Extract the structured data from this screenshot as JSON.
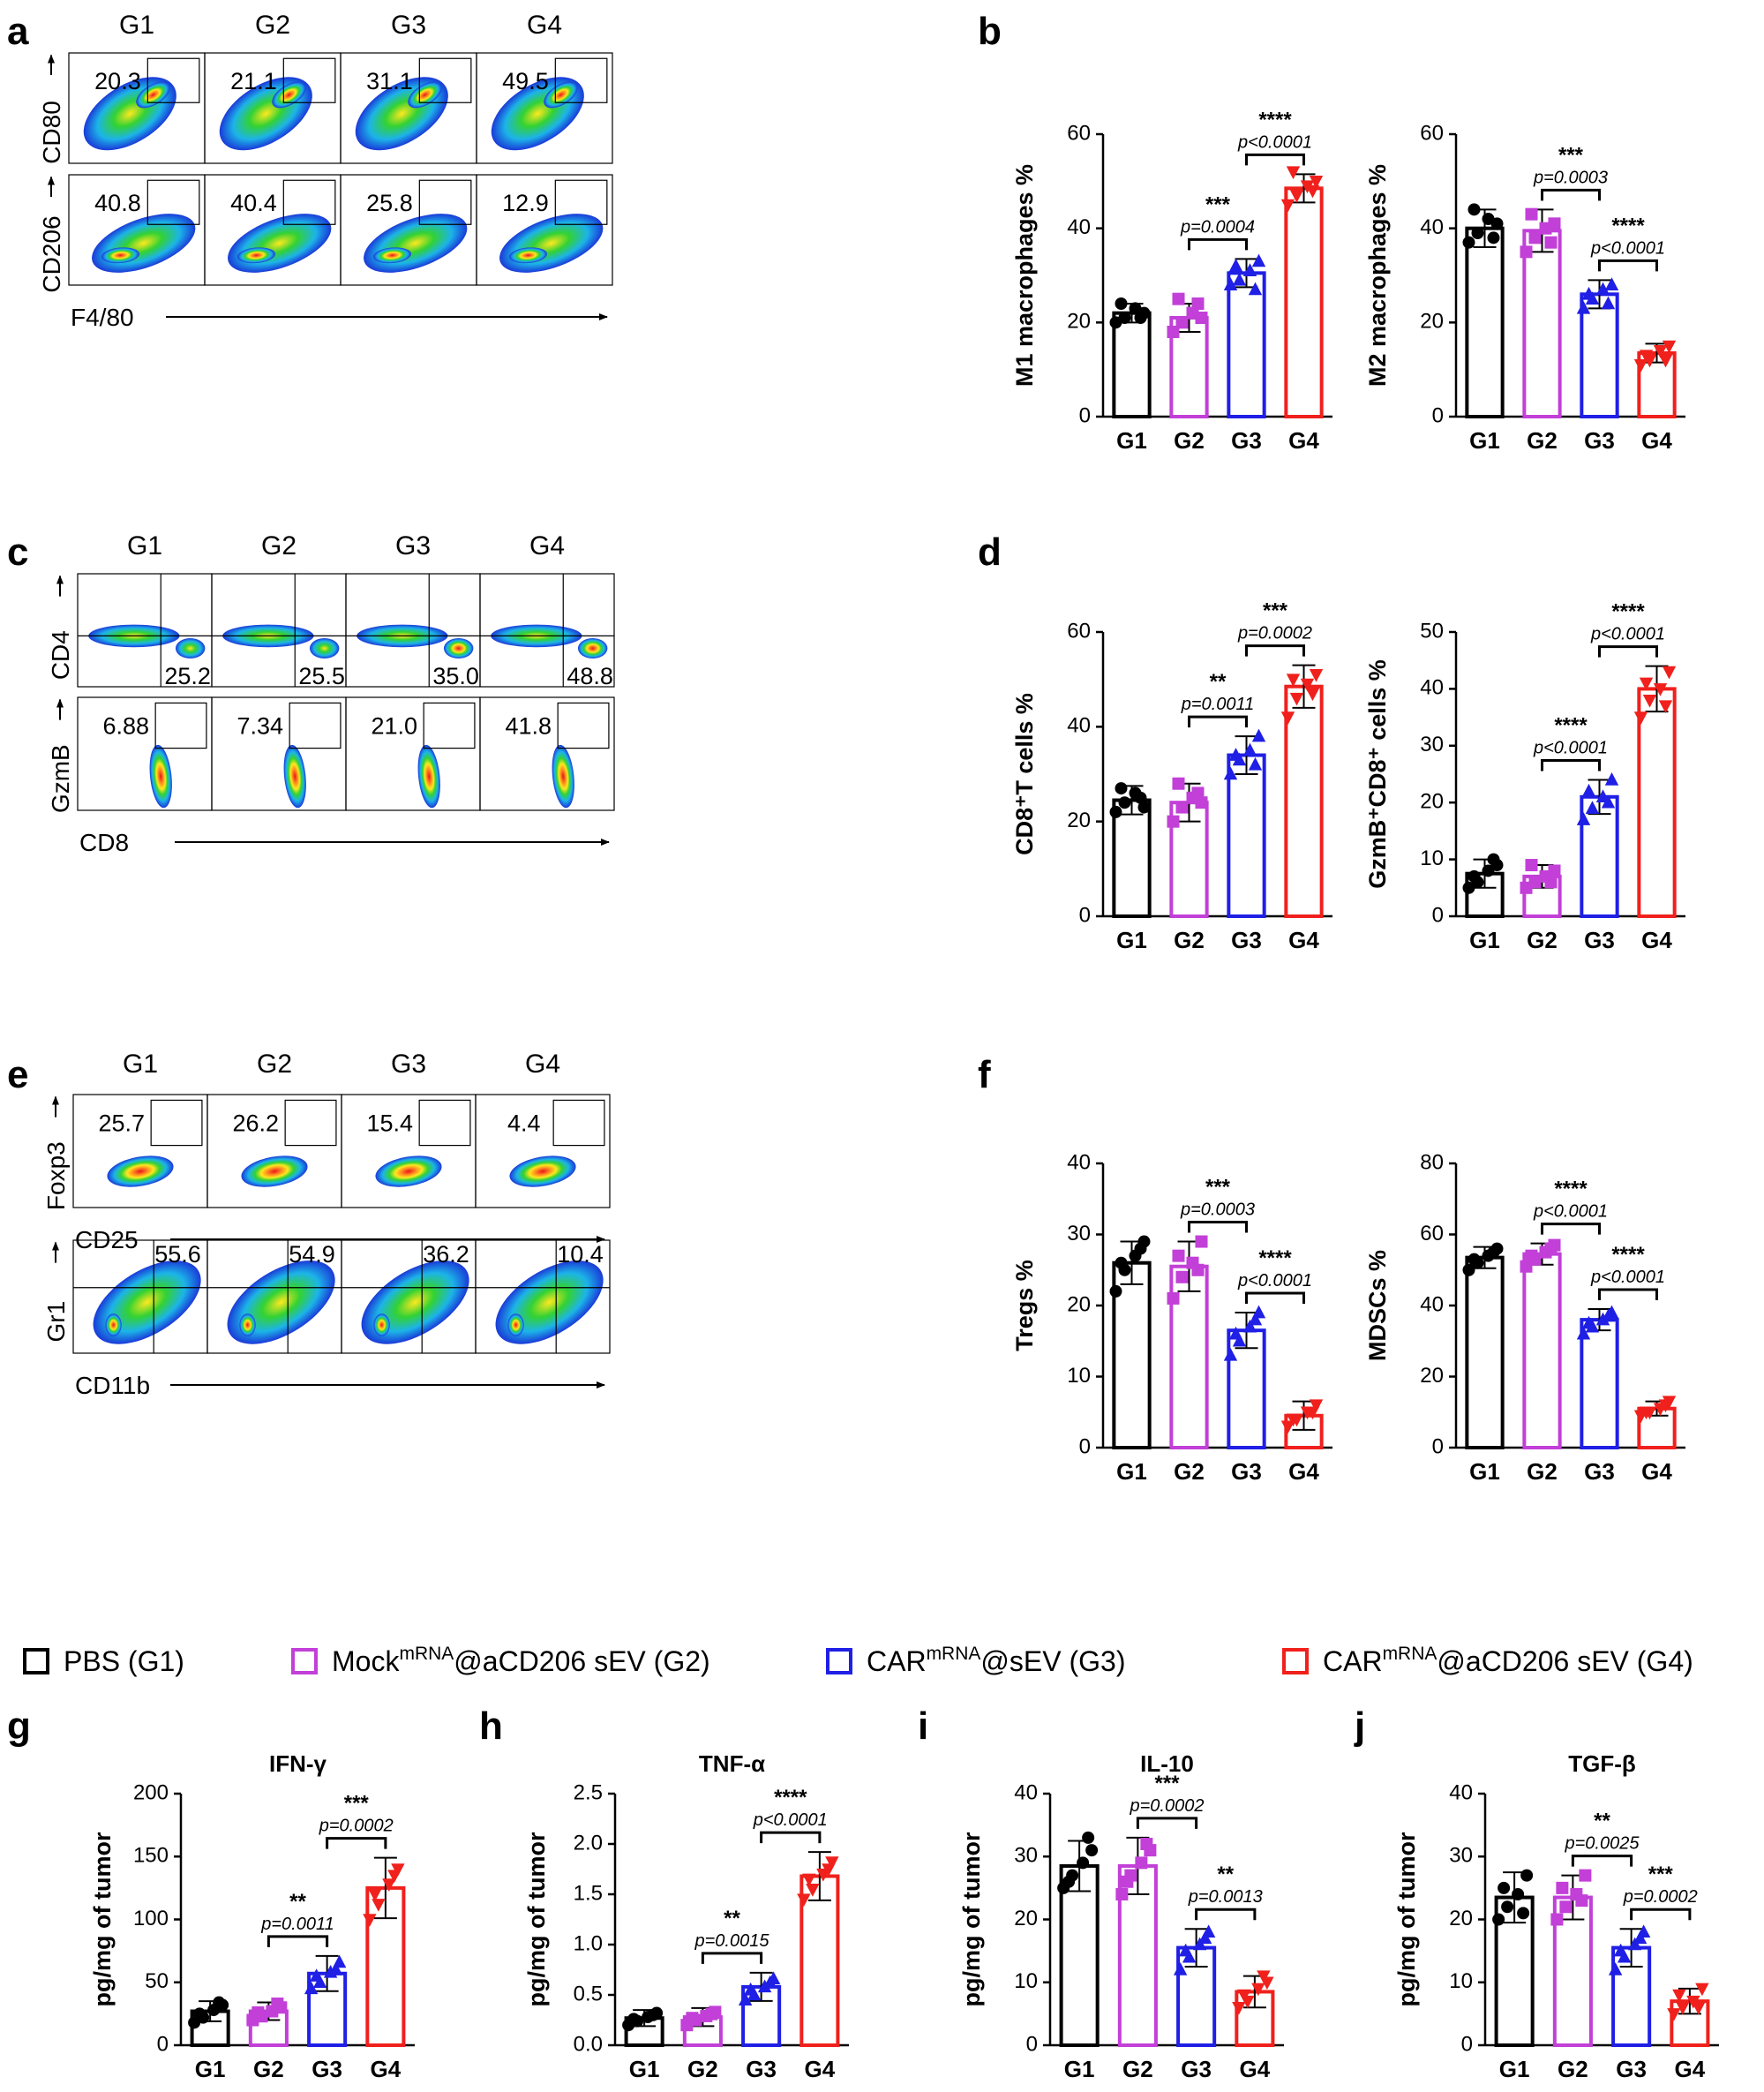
{
  "colors": {
    "G1": "#000000",
    "G2": "#c23fd8",
    "G3": "#1f1fe6",
    "G4": "#f0201c"
  },
  "panel_labels": [
    "a",
    "b",
    "c",
    "d",
    "e",
    "f",
    "g",
    "h",
    "i",
    "j"
  ],
  "flow_groups": [
    "G1",
    "G2",
    "G3",
    "G4"
  ],
  "flow_rows": [
    {
      "id": "a-cd80",
      "ylabel": "CD80",
      "xlabel": "",
      "values": [
        "20.3",
        "21.1",
        "31.1",
        "49.5"
      ],
      "gate": "rect-top",
      "blobs": "diag"
    },
    {
      "id": "a-cd206",
      "ylabel": "CD206",
      "xlabel": "F4/80",
      "values": [
        "40.8",
        "40.4",
        "25.8",
        "12.9"
      ],
      "gate": "rect-top",
      "blobs": "diag-low"
    },
    {
      "id": "c-cd4",
      "ylabel": "CD4",
      "xlabel": "",
      "values": [
        "25.2",
        "25.5",
        "35.0",
        "48.8"
      ],
      "gate": "quad",
      "blobs": "cd4"
    },
    {
      "id": "c-gzmb",
      "ylabel": "GzmB",
      "xlabel": "CD8",
      "values": [
        "6.88",
        "7.34",
        "21.0",
        "41.8"
      ],
      "gate": "rect-top",
      "blobs": "vertical"
    },
    {
      "id": "e-foxp3",
      "ylabel": "Foxp3",
      "xlabel": "CD25",
      "values": [
        "25.7",
        "26.2",
        "15.4",
        "4.4"
      ],
      "gate": "rect-top",
      "blobs": "small"
    },
    {
      "id": "e-gr1",
      "ylabel": "Gr1",
      "xlabel": "CD11b",
      "values": [
        "55.6",
        "54.9",
        "36.2",
        "10.4"
      ],
      "gate": "quad-top",
      "blobs": "diag-wide"
    }
  ],
  "legend": [
    {
      "group": "G1",
      "text": "PBS (G1)"
    },
    {
      "group": "G2",
      "text": "Mock",
      "sup": "mRNA",
      "rest": "@aCD206 sEV (G2)"
    },
    {
      "group": "G3",
      "text": "CAR",
      "sup": "mRNA",
      "rest": "@sEV (G3)"
    },
    {
      "group": "G4",
      "text": "CAR",
      "sup": "mRNA",
      "rest": "@aCD206 sEV (G4)"
    }
  ],
  "chart_data": [
    {
      "id": "b1",
      "type": "bar",
      "title": "",
      "ylabel": "M1 macrophages %",
      "categories": [
        "G1",
        "G2",
        "G3",
        "G4"
      ],
      "values": [
        22,
        21,
        30.5,
        48.5
      ],
      "errors": [
        2,
        3,
        3,
        3
      ],
      "ylim": [
        0,
        60
      ],
      "yticks": [
        0,
        20,
        40,
        60
      ],
      "points": [
        [
          20,
          21,
          23,
          22,
          24,
          21
        ],
        [
          18,
          20,
          22,
          21,
          25,
          24
        ],
        [
          28,
          29,
          31,
          33,
          32,
          27
        ],
        [
          45,
          47,
          49,
          50,
          52,
          48
        ]
      ],
      "annotations": [
        {
          "from": 1,
          "to": 2,
          "stars": "***",
          "p": "p=0.0004"
        },
        {
          "from": 2,
          "to": 3,
          "stars": "****",
          "p": "p<0.0001"
        }
      ]
    },
    {
      "id": "b2",
      "type": "bar",
      "title": "",
      "ylabel": "M2 macrophages %",
      "categories": [
        "G1",
        "G2",
        "G3",
        "G4"
      ],
      "values": [
        40,
        39.5,
        26,
        13.5
      ],
      "errors": [
        4,
        4.5,
        3,
        2
      ],
      "ylim": [
        0,
        60
      ],
      "yticks": [
        0,
        20,
        40,
        60
      ],
      "points": [
        [
          37,
          39,
          42,
          41,
          44,
          38
        ],
        [
          35,
          38,
          40,
          41,
          43,
          37
        ],
        [
          23,
          25,
          27,
          28,
          26,
          24
        ],
        [
          11,
          12,
          14,
          15,
          13,
          12
        ]
      ],
      "annotations": [
        {
          "from": 1,
          "to": 2,
          "stars": "***",
          "p": "p=0.0003"
        },
        {
          "from": 2,
          "to": 3,
          "stars": "****",
          "p": "p<0.0001"
        }
      ]
    },
    {
      "id": "d1",
      "type": "bar",
      "title": "",
      "ylabel": "CD8⁺T cells %",
      "categories": [
        "G1",
        "G2",
        "G3",
        "G4"
      ],
      "values": [
        24.5,
        24,
        34,
        48.5
      ],
      "errors": [
        3,
        4,
        4,
        4.5
      ],
      "ylim": [
        0,
        60
      ],
      "yticks": [
        0,
        20,
        40,
        60
      ],
      "points": [
        [
          22,
          24,
          26,
          23,
          27,
          25
        ],
        [
          20,
          23,
          25,
          24,
          28,
          26
        ],
        [
          30,
          33,
          35,
          38,
          34,
          32
        ],
        [
          42,
          46,
          49,
          51,
          50,
          47
        ]
      ],
      "annotations": [
        {
          "from": 1,
          "to": 2,
          "stars": "**",
          "p": "p=0.0011"
        },
        {
          "from": 2,
          "to": 3,
          "stars": "***",
          "p": "p=0.0002"
        }
      ]
    },
    {
      "id": "d2",
      "type": "bar",
      "title": "",
      "ylabel": "GzmB⁺CD8⁺ cells %",
      "categories": [
        "G1",
        "G2",
        "G3",
        "G4"
      ],
      "values": [
        7.5,
        7,
        21,
        40
      ],
      "errors": [
        2.5,
        2,
        3,
        4
      ],
      "ylim": [
        0,
        50
      ],
      "yticks": [
        0,
        10,
        20,
        30,
        40,
        50
      ],
      "points": [
        [
          5,
          6,
          8,
          9,
          7,
          10
        ],
        [
          5,
          6,
          7,
          8,
          9,
          6
        ],
        [
          17,
          19,
          21,
          24,
          22,
          20
        ],
        [
          35,
          38,
          40,
          43,
          41,
          37
        ]
      ],
      "annotations": [
        {
          "from": 1,
          "to": 2,
          "stars": "****",
          "p": "p<0.0001"
        },
        {
          "from": 2,
          "to": 3,
          "stars": "****",
          "p": "p<0.0001"
        }
      ]
    },
    {
      "id": "f1",
      "type": "bar",
      "title": "",
      "ylabel": "Tregs %",
      "categories": [
        "G1",
        "G2",
        "G3",
        "G4"
      ],
      "values": [
        26,
        25.5,
        16.5,
        4.5
      ],
      "errors": [
        3,
        3.5,
        2.5,
        2
      ],
      "ylim": [
        0,
        40
      ],
      "yticks": [
        0,
        10,
        20,
        30,
        40
      ],
      "points": [
        [
          22,
          25,
          27,
          29,
          26,
          28
        ],
        [
          21,
          24,
          26,
          29,
          27,
          25
        ],
        [
          13,
          15,
          17,
          19,
          16,
          18
        ],
        [
          3,
          4,
          5,
          6,
          4,
          5
        ]
      ],
      "annotations": [
        {
          "from": 1,
          "to": 2,
          "stars": "***",
          "p": "p=0.0003"
        },
        {
          "from": 2,
          "to": 3,
          "stars": "****",
          "p": "p<0.0001"
        }
      ]
    },
    {
      "id": "f2",
      "type": "bar",
      "title": "",
      "ylabel": "MDSCs %",
      "categories": [
        "G1",
        "G2",
        "G3",
        "G4"
      ],
      "values": [
        53.5,
        54.5,
        36,
        11
      ],
      "errors": [
        3,
        3,
        3,
        2
      ],
      "ylim": [
        0,
        80
      ],
      "yticks": [
        0,
        20,
        40,
        60,
        80
      ],
      "points": [
        [
          50,
          52,
          54,
          56,
          53,
          55
        ],
        [
          51,
          53,
          55,
          57,
          54,
          56
        ],
        [
          32,
          34,
          36,
          38,
          35,
          37
        ],
        [
          9,
          10,
          11,
          13,
          10,
          12
        ]
      ],
      "annotations": [
        {
          "from": 1,
          "to": 2,
          "stars": "****",
          "p": "p<0.0001"
        },
        {
          "from": 2,
          "to": 3,
          "stars": "****",
          "p": "p<0.0001"
        }
      ]
    },
    {
      "id": "g",
      "type": "bar",
      "title": "IFN-γ",
      "ylabel": "pg/mg of tumor",
      "categories": [
        "G1",
        "G2",
        "G3",
        "G4"
      ],
      "values": [
        27,
        27,
        57,
        125
      ],
      "errors": [
        8,
        7,
        14,
        24
      ],
      "ylim": [
        0,
        200
      ],
      "yticks": [
        0,
        50,
        100,
        150,
        200
      ],
      "points": [
        [
          18,
          22,
          28,
          32,
          25,
          34
        ],
        [
          20,
          23,
          27,
          30,
          26,
          33
        ],
        [
          45,
          50,
          58,
          66,
          55,
          60
        ],
        [
          100,
          112,
          128,
          140,
          120,
          135
        ]
      ],
      "annotations": [
        {
          "from": 1,
          "to": 2,
          "stars": "**",
          "p": "p=0.0011"
        },
        {
          "from": 2,
          "to": 3,
          "stars": "***",
          "p": "p=0.0002"
        }
      ]
    },
    {
      "id": "h",
      "type": "bar",
      "title": "TNF-α",
      "ylabel": "pg/mg of tumor",
      "categories": [
        "G1",
        "G2",
        "G3",
        "G4"
      ],
      "values": [
        0.27,
        0.28,
        0.58,
        1.68
      ],
      "errors": [
        0.08,
        0.09,
        0.14,
        0.24
      ],
      "ylim": [
        0,
        2.5
      ],
      "yticks": [
        0,
        0.5,
        1.0,
        1.5,
        2.0,
        2.5
      ],
      "ytickfmt": 1,
      "points": [
        [
          0.2,
          0.24,
          0.28,
          0.32,
          0.26,
          0.3
        ],
        [
          0.2,
          0.25,
          0.29,
          0.33,
          0.27,
          0.31
        ],
        [
          0.45,
          0.5,
          0.58,
          0.66,
          0.55,
          0.62
        ],
        [
          1.45,
          1.55,
          1.7,
          1.82,
          1.65,
          1.75
        ]
      ],
      "annotations": [
        {
          "from": 1,
          "to": 2,
          "stars": "**",
          "p": "p=0.0015"
        },
        {
          "from": 2,
          "to": 3,
          "stars": "****",
          "p": "p<0.0001"
        }
      ]
    },
    {
      "id": "i",
      "type": "bar",
      "title": "IL-10",
      "ylabel": "pg/mg of tumor",
      "categories": [
        "G1",
        "G2",
        "G3",
        "G4"
      ],
      "values": [
        28.5,
        28.5,
        15.5,
        8.5
      ],
      "errors": [
        4,
        4.5,
        3,
        2.5
      ],
      "ylim": [
        0,
        40
      ],
      "yticks": [
        0,
        10,
        20,
        30,
        40
      ],
      "points": [
        [
          25,
          27,
          29,
          31,
          26,
          33
        ],
        [
          24,
          27,
          29,
          31,
          26,
          32
        ],
        [
          12,
          14,
          16,
          18,
          15,
          17
        ],
        [
          6,
          7,
          9,
          10,
          8,
          11
        ]
      ],
      "annotations": [
        {
          "from": 1,
          "to": 2,
          "stars": "***",
          "p": "p=0.0002"
        },
        {
          "from": 2,
          "to": 3,
          "stars": "**",
          "p": "p=0.0013"
        }
      ]
    },
    {
      "id": "j",
      "type": "bar",
      "title": "TGF-β",
      "ylabel": "pg/mg of tumor",
      "categories": [
        "G1",
        "G2",
        "G3",
        "G4"
      ],
      "values": [
        23.5,
        23.5,
        15.5,
        7
      ],
      "errors": [
        4,
        3.5,
        3,
        2
      ],
      "ylim": [
        0,
        40
      ],
      "yticks": [
        0,
        10,
        20,
        30,
        40
      ],
      "points": [
        [
          20,
          22,
          24,
          27,
          25,
          21
        ],
        [
          20,
          22,
          24,
          27,
          25,
          23
        ],
        [
          12,
          14,
          16,
          18,
          15,
          17
        ],
        [
          5,
          6,
          7,
          9,
          8,
          6
        ]
      ],
      "annotations": [
        {
          "from": 1,
          "to": 2,
          "stars": "**",
          "p": "p=0.0025"
        },
        {
          "from": 2,
          "to": 3,
          "stars": "***",
          "p": "p=0.0002"
        }
      ]
    }
  ]
}
